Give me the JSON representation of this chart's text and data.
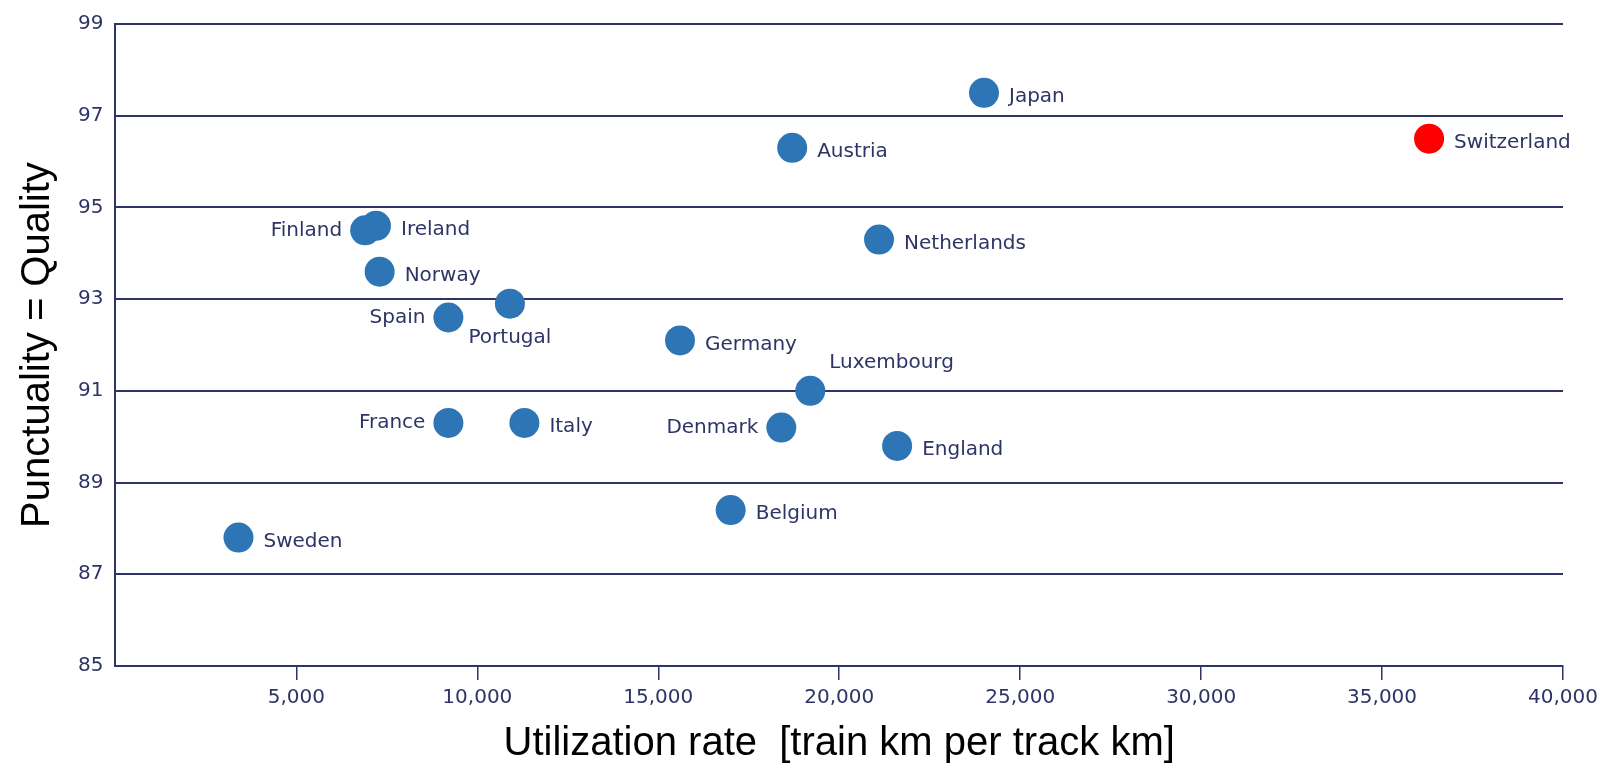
{
  "chart_data": {
    "type": "scatter",
    "xlabel": "Utilization rate  [train km per track km]",
    "ylabel": "Punctuality = Quality",
    "x": [
      24000,
      36300,
      18700,
      7200,
      6900,
      21100,
      7300,
      10900,
      9200,
      15600,
      19200,
      9200,
      11300,
      18400,
      21600,
      17000,
      3400
    ],
    "values": [
      97.5,
      96.5,
      96.3,
      94.6,
      94.5,
      94.3,
      93.6,
      92.9,
      92.6,
      92.1,
      91.0,
      90.3,
      90.3,
      90.2,
      89.8,
      88.4,
      87.8
    ],
    "colors": [
      "#2e75b6",
      "#ff0000",
      "#2e75b6",
      "#2e75b6",
      "#2e75b6",
      "#2e75b6",
      "#2e75b6",
      "#2e75b6",
      "#2e75b6",
      "#2e75b6",
      "#2e75b6",
      "#2e75b6",
      "#2e75b6",
      "#2e75b6",
      "#2e75b6",
      "#2e75b6",
      "#2e75b6"
    ],
    "marker": "circle",
    "xlim": [
      0,
      40000
    ],
    "xticks": [
      {
        "value": 5000,
        "label": "5,000"
      },
      {
        "value": 10000,
        "label": "10,000"
      },
      {
        "value": 15000,
        "label": "15,000"
      },
      {
        "value": 20000,
        "label": "20,000"
      },
      {
        "value": 25000,
        "label": "25,000"
      },
      {
        "value": 30000,
        "label": "30,000"
      },
      {
        "value": 35000,
        "label": "35,000"
      },
      {
        "value": 40000,
        "label": "40,000"
      }
    ],
    "ylim": [
      85,
      99
    ],
    "yticks": [
      85,
      87,
      89,
      91,
      93,
      95,
      97,
      99
    ],
    "grid": "y",
    "legend": false,
    "annotations": [
      {
        "text": "Japan",
        "x": 24000,
        "y": 97.5
      },
      {
        "text": "Switzerland",
        "x": 36300,
        "y": 96.5
      },
      {
        "text": "Austria",
        "x": 18700,
        "y": 96.3
      },
      {
        "text": "Ireland",
        "x": 7200,
        "y": 94.6
      },
      {
        "text": "Finland",
        "x": 6900,
        "y": 94.5
      },
      {
        "text": "Netherlands",
        "x": 21100,
        "y": 94.3
      },
      {
        "text": "Norway",
        "x": 7300,
        "y": 93.6
      },
      {
        "text": "Portugal",
        "x": 10900,
        "y": 92.9
      },
      {
        "text": "Spain",
        "x": 9200,
        "y": 92.6
      },
      {
        "text": "Germany",
        "x": 15600,
        "y": 92.1
      },
      {
        "text": "Luxembourg",
        "x": 19200,
        "y": 91.0
      },
      {
        "text": "France",
        "x": 9200,
        "y": 90.3
      },
      {
        "text": "Italy",
        "x": 11300,
        "y": 90.3
      },
      {
        "text": "Denmark",
        "x": 18400,
        "y": 90.2
      },
      {
        "text": "England",
        "x": 21600,
        "y": 89.8
      },
      {
        "text": "Belgium",
        "x": 17000,
        "y": 88.4
      },
      {
        "text": "Sweden",
        "x": 3400,
        "y": 87.8
      }
    ]
  }
}
